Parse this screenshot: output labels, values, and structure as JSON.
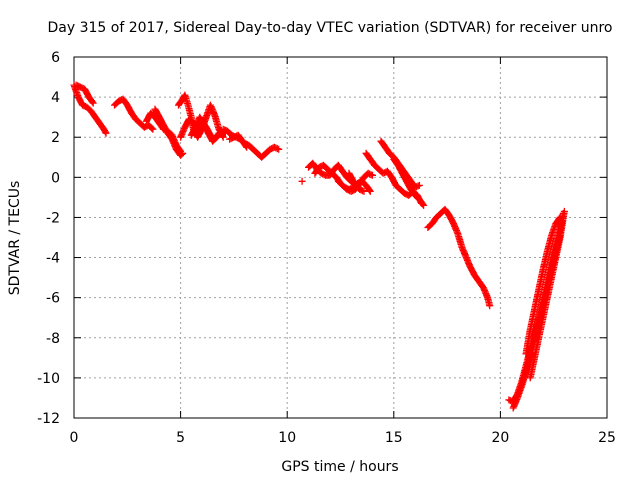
{
  "chart_data": {
    "type": "scatter",
    "title": "Day 315 of 2017, Sidereal Day-to-day VTEC variation (SDTVAR) for receiver unro",
    "xlabel": "GPS time / hours",
    "ylabel": "SDTVAR / TECUs",
    "xlim": [
      0,
      25
    ],
    "ylim": [
      -12,
      6
    ],
    "x_ticks": [
      0,
      5,
      10,
      15,
      20,
      25
    ],
    "y_ticks": [
      -12,
      -10,
      -8,
      -6,
      -4,
      -2,
      0,
      2,
      4,
      6
    ],
    "grid": true,
    "marker": "+",
    "marker_color": "#ff0000",
    "series": [
      {
        "name": "SDTVAR",
        "segments": [
          [
            [
              0.0,
              4.6
            ],
            [
              0.1,
              4.3
            ],
            [
              0.2,
              4.0
            ],
            [
              0.3,
              3.8
            ],
            [
              0.4,
              3.6
            ],
            [
              0.6,
              3.5
            ],
            [
              0.8,
              3.3
            ],
            [
              1.0,
              3.0
            ],
            [
              1.2,
              2.7
            ],
            [
              1.4,
              2.4
            ],
            [
              1.5,
              2.2
            ]
          ],
          [
            [
              0.1,
              4.6
            ],
            [
              0.3,
              4.5
            ],
            [
              0.5,
              4.4
            ],
            [
              0.7,
              4.0
            ],
            [
              0.9,
              3.7
            ]
          ],
          [
            [
              1.9,
              3.6
            ],
            [
              2.1,
              3.8
            ],
            [
              2.3,
              3.9
            ],
            [
              2.5,
              3.6
            ],
            [
              2.7,
              3.2
            ],
            [
              2.9,
              2.9
            ],
            [
              3.1,
              2.7
            ],
            [
              3.3,
              2.5
            ],
            [
              3.5,
              2.6
            ],
            [
              3.7,
              2.4
            ]
          ],
          [
            [
              3.4,
              2.8
            ],
            [
              3.6,
              3.2
            ],
            [
              3.8,
              3.0
            ],
            [
              4.0,
              2.7
            ],
            [
              4.2,
              2.4
            ],
            [
              4.4,
              2.3
            ],
            [
              4.6,
              2.1
            ],
            [
              4.8,
              1.6
            ],
            [
              5.0,
              1.3
            ]
          ],
          [
            [
              3.8,
              3.4
            ],
            [
              4.0,
              3.0
            ],
            [
              4.2,
              2.6
            ],
            [
              4.4,
              2.2
            ],
            [
              4.6,
              1.9
            ],
            [
              4.8,
              1.4
            ],
            [
              5.0,
              1.1
            ],
            [
              5.1,
              1.2
            ]
          ],
          [
            [
              4.9,
              3.6
            ],
            [
              5.1,
              3.9
            ],
            [
              5.2,
              4.1
            ],
            [
              5.35,
              3.6
            ],
            [
              5.5,
              3.0
            ],
            [
              5.6,
              2.4
            ],
            [
              5.8,
              2.0
            ],
            [
              6.0,
              2.4
            ],
            [
              6.2,
              3.0
            ],
            [
              6.4,
              3.6
            ],
            [
              6.6,
              3.1
            ],
            [
              6.8,
              2.4
            ],
            [
              7.0,
              2.0
            ]
          ],
          [
            [
              5.0,
              2.0
            ],
            [
              5.2,
              2.5
            ],
            [
              5.4,
              2.9
            ],
            [
              5.6,
              2.7
            ],
            [
              5.8,
              2.3
            ],
            [
              6.0,
              2.8
            ],
            [
              6.2,
              2.5
            ],
            [
              6.4,
              2.1
            ],
            [
              6.6,
              1.9
            ],
            [
              6.8,
              2.2
            ]
          ],
          [
            [
              5.5,
              2.1
            ],
            [
              5.7,
              2.5
            ],
            [
              5.9,
              3.0
            ],
            [
              6.1,
              2.6
            ],
            [
              6.3,
              2.2
            ],
            [
              6.5,
              1.8
            ],
            [
              6.7,
              2.0
            ],
            [
              6.9,
              2.3
            ],
            [
              7.1,
              2.2
            ]
          ],
          [
            [
              7.0,
              2.4
            ],
            [
              7.2,
              2.3
            ],
            [
              7.4,
              2.1
            ],
            [
              7.6,
              2.0
            ],
            [
              7.8,
              1.9
            ],
            [
              8.0,
              1.7
            ],
            [
              8.2,
              1.6
            ],
            [
              8.4,
              1.4
            ],
            [
              8.6,
              1.2
            ],
            [
              8.8,
              1.0
            ]
          ],
          [
            [
              7.3,
              1.9
            ],
            [
              7.5,
              2.0
            ],
            [
              7.7,
              2.1
            ],
            [
              7.9,
              1.8
            ],
            [
              8.1,
              1.5
            ]
          ],
          [
            [
              8.8,
              1.0
            ],
            [
              9.0,
              1.2
            ],
            [
              9.2,
              1.4
            ],
            [
              9.4,
              1.5
            ],
            [
              9.6,
              1.4
            ]
          ],
          [
            [
              10.7,
              -0.2
            ]
          ],
          [
            [
              11.0,
              0.5
            ],
            [
              11.2,
              0.7
            ],
            [
              11.4,
              0.4
            ],
            [
              11.6,
              0.2
            ],
            [
              11.8,
              0.1
            ],
            [
              12.0,
              0.1
            ],
            [
              12.2,
              0.4
            ],
            [
              12.4,
              0.6
            ],
            [
              12.6,
              0.3
            ],
            [
              12.8,
              0.0
            ],
            [
              13.0,
              -0.2
            ],
            [
              13.2,
              -0.4
            ],
            [
              13.4,
              -0.6
            ],
            [
              13.6,
              -0.7
            ]
          ],
          [
            [
              11.3,
              0.2
            ],
            [
              11.5,
              0.5
            ],
            [
              11.7,
              0.6
            ],
            [
              11.9,
              0.4
            ],
            [
              12.1,
              0.2
            ],
            [
              12.3,
              0.0
            ],
            [
              12.5,
              -0.3
            ],
            [
              12.7,
              -0.5
            ],
            [
              12.9,
              -0.6
            ],
            [
              13.1,
              -0.5
            ],
            [
              13.3,
              -0.3
            ],
            [
              13.5,
              -0.2
            ],
            [
              13.7,
              -0.4
            ],
            [
              13.9,
              -0.7
            ]
          ],
          [
            [
              12.4,
              -0.2
            ],
            [
              12.6,
              -0.4
            ],
            [
              12.8,
              -0.6
            ],
            [
              13.0,
              -0.7
            ],
            [
              13.2,
              -0.6
            ],
            [
              13.4,
              -0.3
            ],
            [
              13.6,
              0.0
            ],
            [
              13.8,
              0.2
            ],
            [
              14.0,
              0.1
            ]
          ],
          [
            [
              12.9,
              0.2
            ],
            [
              13.1,
              -0.2
            ],
            [
              13.3,
              -0.5
            ]
          ],
          [
            [
              13.7,
              1.2
            ],
            [
              13.9,
              0.9
            ],
            [
              14.1,
              0.6
            ],
            [
              14.3,
              0.4
            ],
            [
              14.5,
              0.2
            ],
            [
              14.7,
              0.3
            ],
            [
              14.9,
              0.0
            ],
            [
              15.1,
              -0.4
            ],
            [
              15.3,
              -0.6
            ],
            [
              15.5,
              -0.8
            ],
            [
              15.7,
              -0.9
            ],
            [
              15.9,
              -0.7
            ],
            [
              16.1,
              -0.9
            ],
            [
              16.3,
              -1.3
            ]
          ],
          [
            [
              14.4,
              1.8
            ],
            [
              14.6,
              1.5
            ],
            [
              14.8,
              1.2
            ],
            [
              15.0,
              1.0
            ],
            [
              15.2,
              0.7
            ],
            [
              15.4,
              0.4
            ],
            [
              15.6,
              0.1
            ],
            [
              15.8,
              -0.2
            ],
            [
              16.0,
              -0.5
            ],
            [
              16.2,
              -0.4
            ]
          ],
          [
            [
              15.0,
              0.9
            ],
            [
              15.2,
              0.6
            ],
            [
              15.4,
              0.2
            ],
            [
              15.6,
              -0.2
            ],
            [
              15.8,
              -0.6
            ],
            [
              16.0,
              -0.9
            ],
            [
              16.2,
              -1.1
            ],
            [
              16.4,
              -1.4
            ]
          ],
          [
            [
              16.6,
              -2.5
            ],
            [
              16.8,
              -2.3
            ],
            [
              17.0,
              -2.0
            ],
            [
              17.2,
              -1.8
            ],
            [
              17.4,
              -1.6
            ],
            [
              17.6,
              -1.9
            ],
            [
              17.8,
              -2.3
            ],
            [
              18.0,
              -2.8
            ],
            [
              18.2,
              -3.5
            ],
            [
              18.4,
              -4.0
            ],
            [
              18.6,
              -4.5
            ],
            [
              18.8,
              -4.9
            ],
            [
              19.0,
              -5.2
            ],
            [
              19.2,
              -5.5
            ],
            [
              19.4,
              -6.0
            ],
            [
              19.5,
              -6.4
            ]
          ],
          [
            [
              20.4,
              -11.1
            ],
            [
              20.6,
              -11.2
            ],
            [
              20.8,
              -10.8
            ],
            [
              21.0,
              -10.2
            ],
            [
              21.2,
              -9.4
            ],
            [
              21.4,
              -8.6
            ],
            [
              21.6,
              -7.8
            ],
            [
              21.8,
              -7.0
            ],
            [
              22.0,
              -6.0
            ],
            [
              22.2,
              -5.0
            ],
            [
              22.4,
              -4.0
            ],
            [
              22.6,
              -3.2
            ],
            [
              22.8,
              -2.6
            ],
            [
              22.9,
              -2.2
            ]
          ],
          [
            [
              20.6,
              -11.5
            ],
            [
              20.8,
              -11.0
            ],
            [
              21.0,
              -10.4
            ],
            [
              21.2,
              -9.7
            ],
            [
              21.4,
              -8.9
            ],
            [
              21.6,
              -8.1
            ],
            [
              21.8,
              -7.3
            ],
            [
              22.0,
              -6.4
            ],
            [
              22.2,
              -5.5
            ],
            [
              22.4,
              -4.6
            ],
            [
              22.6,
              -3.7
            ],
            [
              22.8,
              -2.9
            ],
            [
              22.95,
              -1.8
            ]
          ],
          [
            [
              21.4,
              -10.0
            ],
            [
              21.6,
              -9.0
            ],
            [
              21.8,
              -8.0
            ],
            [
              22.0,
              -7.0
            ],
            [
              22.2,
              -6.0
            ],
            [
              22.4,
              -5.0
            ],
            [
              22.6,
              -4.0
            ],
            [
              22.8,
              -3.0
            ],
            [
              23.0,
              -1.7
            ]
          ],
          [
            [
              21.2,
              -8.8
            ],
            [
              21.4,
              -7.6
            ],
            [
              21.6,
              -6.6
            ],
            [
              21.8,
              -5.6
            ],
            [
              22.0,
              -4.6
            ],
            [
              22.2,
              -3.7
            ],
            [
              22.4,
              -2.9
            ],
            [
              22.6,
              -2.3
            ],
            [
              22.8,
              -2.0
            ]
          ]
        ]
      }
    ]
  }
}
